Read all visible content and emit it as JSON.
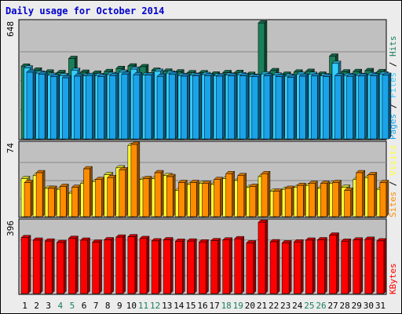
{
  "title": "Daily usage for October 2014",
  "chart_data": {
    "type": "bar",
    "title": "Daily usage for October 2014",
    "categories": [
      "1",
      "2",
      "3",
      "4",
      "5",
      "6",
      "7",
      "8",
      "9",
      "10",
      "11",
      "12",
      "13",
      "14",
      "15",
      "16",
      "17",
      "18",
      "19",
      "20",
      "21",
      "22",
      "23",
      "24",
      "25",
      "26",
      "27",
      "28",
      "29",
      "30",
      "31"
    ],
    "weekend_days": [
      "4",
      "5",
      "11",
      "12",
      "18",
      "19",
      "25",
      "26"
    ],
    "panels": [
      {
        "id": "pages-files-hits",
        "ymax_label": "648",
        "ymax": 648,
        "series": [
          {
            "name": "Hits",
            "color": "#1a7f5a",
            "values": [
              406,
              384,
              373,
              370,
              449,
              372,
              367,
              376,
              393,
              407,
              403,
              383,
              378,
              374,
              369,
              369,
              362,
              370,
              371,
              360,
              647,
              381,
              361,
              373,
              377,
              361,
              462,
              374,
              376,
              381,
              375
            ]
          },
          {
            "name": "Files",
            "color": "#33ccff",
            "values": [
              396,
              367,
              355,
              353,
              382,
              352,
              353,
              359,
              372,
              389,
              357,
              377,
              367,
              354,
              355,
              359,
              352,
              356,
              358,
              349,
              362,
              356,
              350,
              360,
              360,
              352,
              421,
              354,
              354,
              358,
              362
            ]
          },
          {
            "name": "Pages",
            "color": "#1aa3e8",
            "values": [
              372,
              361,
              347,
              341,
              350,
              354,
              347,
              353,
              360,
              358,
              356,
              349,
              360,
              350,
              352,
              353,
              350,
              352,
              352,
              347,
              352,
              348,
              343,
              350,
              351,
              348,
              353,
              349,
              351,
              352,
              355
            ]
          }
        ],
        "side_label": [
          {
            "text": "Pages",
            "color": "#1aa3e8"
          },
          {
            "text": " / ",
            "color": "#000000"
          },
          {
            "text": "Files",
            "color": "#33ccff"
          },
          {
            "text": " / ",
            "color": "#000000"
          },
          {
            "text": "Hits",
            "color": "#1a7f5a"
          }
        ]
      },
      {
        "id": "sites-visits",
        "ymax_label": "74",
        "ymax": 74,
        "series": [
          {
            "name": "Visits",
            "color": "#ffff33",
            "values": [
              39,
              42,
              29,
              28,
              24,
              34,
              36,
              43,
              50,
              73,
              38,
              39,
              42,
              27,
              33,
              34,
              33,
              39,
              37,
              30,
              41,
              26,
              28,
              30,
              32,
              29,
              34,
              30,
              38,
              40,
              28
            ]
          },
          {
            "name": "Sites",
            "color": "#ff8c00",
            "values": [
              35,
              45,
              29,
              31,
              30,
              49,
              38,
              40,
              48,
              74,
              39,
              45,
              41,
              35,
              35,
              34,
              38,
              44,
              42,
              31,
              44,
              26,
              29,
              32,
              34,
              34,
              35,
              27,
              45,
              43,
              35
            ]
          }
        ],
        "side_label": [
          {
            "text": "Sites",
            "color": "#ff8c00"
          },
          {
            "text": " / ",
            "color": "#000000"
          },
          {
            "text": "Visits",
            "color": "#ffff33"
          }
        ]
      },
      {
        "id": "kbytes",
        "ymax_label": "396",
        "ymax": 396,
        "series": [
          {
            "name": "KBytes",
            "color": "#ff0000",
            "values": [
              310,
              296,
              291,
              283,
              306,
              296,
              285,
              298,
              313,
              315,
              305,
              292,
              298,
              290,
              291,
              286,
              293,
              297,
              304,
              281,
              395,
              287,
              281,
              286,
              296,
              298,
              324,
              290,
              297,
              301,
              292
            ]
          }
        ],
        "side_label": [
          {
            "text": "KBytes",
            "color": "#ff0000"
          }
        ]
      }
    ]
  }
}
